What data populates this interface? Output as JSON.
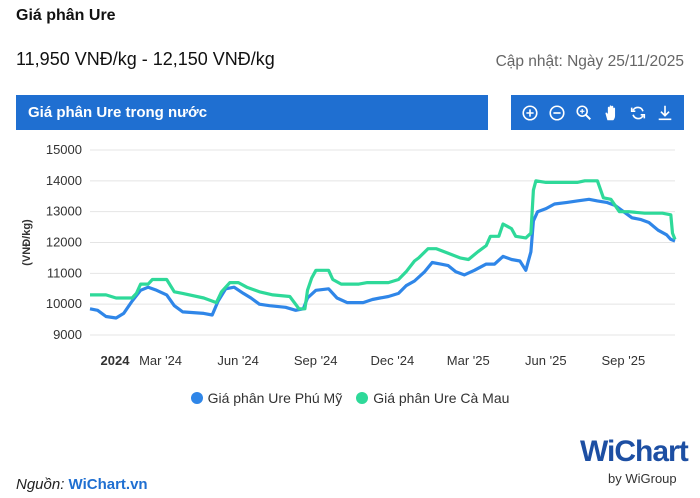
{
  "page": {
    "title": "Giá phân Ure",
    "price_range": "11,950 VNĐ/kg - 12,150 VNĐ/kg",
    "updated": "Cập nhật: Ngày 25/11/2025",
    "banner": "Giá phân Ure trong nước",
    "source_label": "Nguồn:",
    "source_link": "WiChart.vn",
    "logo_main": "WiChart",
    "logo_sub": "by WiGroup"
  },
  "toolbar": {
    "icons": [
      "zoom-in-icon",
      "zoom-out-icon",
      "magnifier-icon",
      "pan-hand-icon",
      "reset-icon",
      "download-icon"
    ]
  },
  "colors": {
    "accent": "#1f6fd1",
    "phu_my": "#2f86e8",
    "ca_mau": "#2ed999"
  },
  "chart_data": {
    "type": "line",
    "title": "Giá phân Ure trong nước",
    "ylabel": "(VNĐ/kg)",
    "xlabel": "",
    "ylim": [
      9000,
      15000
    ],
    "yticks": [
      9000,
      10000,
      11000,
      12000,
      13000,
      14000,
      15000
    ],
    "x_range": [
      "2024-01-01",
      "2025-11-25"
    ],
    "xticks": [
      {
        "date": "2024-01-01",
        "label": "2024",
        "bold": true
      },
      {
        "date": "2024-03-01",
        "label": "Mar '24"
      },
      {
        "date": "2024-06-01",
        "label": "Jun '24"
      },
      {
        "date": "2024-09-01",
        "label": "Sep '24"
      },
      {
        "date": "2024-12-01",
        "label": "Dec '24"
      },
      {
        "date": "2025-03-01",
        "label": "Mar '25"
      },
      {
        "date": "2025-06-01",
        "label": "Jun '25"
      },
      {
        "date": "2025-09-01",
        "label": "Sep '25"
      }
    ],
    "grid": true,
    "legend_position": "bottom",
    "series": [
      {
        "name": "Giá phân Ure Phú Mỹ",
        "color": "#2f86e8",
        "points": [
          [
            "2024-01-01",
            9850
          ],
          [
            "2024-01-10",
            9800
          ],
          [
            "2024-01-20",
            9600
          ],
          [
            "2024-02-01",
            9550
          ],
          [
            "2024-02-10",
            9700
          ],
          [
            "2024-02-20",
            10100
          ],
          [
            "2024-03-01",
            10450
          ],
          [
            "2024-03-10",
            10550
          ],
          [
            "2024-03-20",
            10450
          ],
          [
            "2024-04-01",
            10300
          ],
          [
            "2024-04-10",
            9950
          ],
          [
            "2024-04-20",
            9750
          ],
          [
            "2024-05-15",
            9700
          ],
          [
            "2024-05-25",
            9650
          ],
          [
            "2024-06-01",
            10100
          ],
          [
            "2024-06-10",
            10500
          ],
          [
            "2024-06-20",
            10550
          ],
          [
            "2024-07-01",
            10350
          ],
          [
            "2024-07-10",
            10200
          ],
          [
            "2024-07-20",
            10000
          ],
          [
            "2024-08-01",
            9950
          ],
          [
            "2024-08-20",
            9900
          ],
          [
            "2024-09-01",
            9800
          ],
          [
            "2024-09-10",
            9850
          ],
          [
            "2024-09-15",
            10200
          ],
          [
            "2024-09-25",
            10450
          ],
          [
            "2024-10-10",
            10500
          ],
          [
            "2024-10-20",
            10200
          ],
          [
            "2024-11-01",
            10050
          ],
          [
            "2024-11-20",
            10050
          ],
          [
            "2024-12-01",
            10150
          ],
          [
            "2024-12-10",
            10200
          ],
          [
            "2024-12-20",
            10250
          ],
          [
            "2025-01-01",
            10350
          ],
          [
            "2025-01-10",
            10600
          ],
          [
            "2025-01-20",
            10750
          ],
          [
            "2025-02-01",
            11050
          ],
          [
            "2025-02-10",
            11350
          ],
          [
            "2025-02-20",
            11300
          ],
          [
            "2025-03-01",
            11250
          ],
          [
            "2025-03-10",
            11050
          ],
          [
            "2025-03-20",
            10950
          ],
          [
            "2025-04-01",
            11100
          ],
          [
            "2025-04-15",
            11300
          ],
          [
            "2025-04-25",
            11300
          ],
          [
            "2025-05-05",
            11550
          ],
          [
            "2025-05-15",
            11450
          ],
          [
            "2025-05-25",
            11400
          ],
          [
            "2025-06-01",
            11100
          ],
          [
            "2025-06-07",
            11700
          ],
          [
            "2025-06-10",
            12700
          ],
          [
            "2025-06-15",
            13000
          ],
          [
            "2025-06-25",
            13100
          ],
          [
            "2025-07-05",
            13250
          ],
          [
            "2025-07-20",
            13300
          ],
          [
            "2025-08-01",
            13350
          ],
          [
            "2025-08-15",
            13400
          ],
          [
            "2025-08-25",
            13350
          ],
          [
            "2025-09-05",
            13300
          ],
          [
            "2025-09-15",
            13200
          ],
          [
            "2025-09-25",
            13000
          ],
          [
            "2025-10-05",
            12800
          ],
          [
            "2025-10-15",
            12750
          ],
          [
            "2025-10-25",
            12650
          ],
          [
            "2025-11-05",
            12400
          ],
          [
            "2025-11-15",
            12250
          ],
          [
            "2025-11-20",
            12100
          ],
          [
            "2025-11-25",
            12050
          ]
        ]
      },
      {
        "name": "Giá phân Ure Cà Mau",
        "color": "#2ed999",
        "points": [
          [
            "2024-01-01",
            10300
          ],
          [
            "2024-01-20",
            10300
          ],
          [
            "2024-02-01",
            10200
          ],
          [
            "2024-02-20",
            10200
          ],
          [
            "2024-02-25",
            10350
          ],
          [
            "2024-03-01",
            10650
          ],
          [
            "2024-03-10",
            10650
          ],
          [
            "2024-03-15",
            10800
          ],
          [
            "2024-04-01",
            10800
          ],
          [
            "2024-04-10",
            10400
          ],
          [
            "2024-04-20",
            10350
          ],
          [
            "2024-05-15",
            10200
          ],
          [
            "2024-05-30",
            10050
          ],
          [
            "2024-06-05",
            10400
          ],
          [
            "2024-06-15",
            10700
          ],
          [
            "2024-06-25",
            10700
          ],
          [
            "2024-07-05",
            10550
          ],
          [
            "2024-07-20",
            10400
          ],
          [
            "2024-08-05",
            10300
          ],
          [
            "2024-08-25",
            10250
          ],
          [
            "2024-09-05",
            9850
          ],
          [
            "2024-09-12",
            9850
          ],
          [
            "2024-09-15",
            10450
          ],
          [
            "2024-09-20",
            10850
          ],
          [
            "2024-09-25",
            11100
          ],
          [
            "2024-10-10",
            11100
          ],
          [
            "2024-10-15",
            10800
          ],
          [
            "2024-10-25",
            10650
          ],
          [
            "2024-11-15",
            10650
          ],
          [
            "2024-11-25",
            10700
          ],
          [
            "2024-12-20",
            10700
          ],
          [
            "2025-01-01",
            10800
          ],
          [
            "2025-01-10",
            11050
          ],
          [
            "2025-01-20",
            11400
          ],
          [
            "2025-01-25",
            11500
          ],
          [
            "2025-02-05",
            11800
          ],
          [
            "2025-02-15",
            11800
          ],
          [
            "2025-03-01",
            11650
          ],
          [
            "2025-03-15",
            11500
          ],
          [
            "2025-03-25",
            11450
          ],
          [
            "2025-04-05",
            11700
          ],
          [
            "2025-04-15",
            11900
          ],
          [
            "2025-04-20",
            12200
          ],
          [
            "2025-04-30",
            12200
          ],
          [
            "2025-05-05",
            12600
          ],
          [
            "2025-05-15",
            12450
          ],
          [
            "2025-05-20",
            12200
          ],
          [
            "2025-06-01",
            12150
          ],
          [
            "2025-06-07",
            12300
          ],
          [
            "2025-06-10",
            13700
          ],
          [
            "2025-06-13",
            14000
          ],
          [
            "2025-06-25",
            13950
          ],
          [
            "2025-07-15",
            13950
          ],
          [
            "2025-08-01",
            13950
          ],
          [
            "2025-08-10",
            14000
          ],
          [
            "2025-08-25",
            14000
          ],
          [
            "2025-09-01",
            13450
          ],
          [
            "2025-09-10",
            13400
          ],
          [
            "2025-09-20",
            13000
          ],
          [
            "2025-10-01",
            13000
          ],
          [
            "2025-10-20",
            12950
          ],
          [
            "2025-11-10",
            12950
          ],
          [
            "2025-11-20",
            12900
          ],
          [
            "2025-11-22",
            12300
          ],
          [
            "2025-11-25",
            12100
          ]
        ]
      }
    ]
  }
}
